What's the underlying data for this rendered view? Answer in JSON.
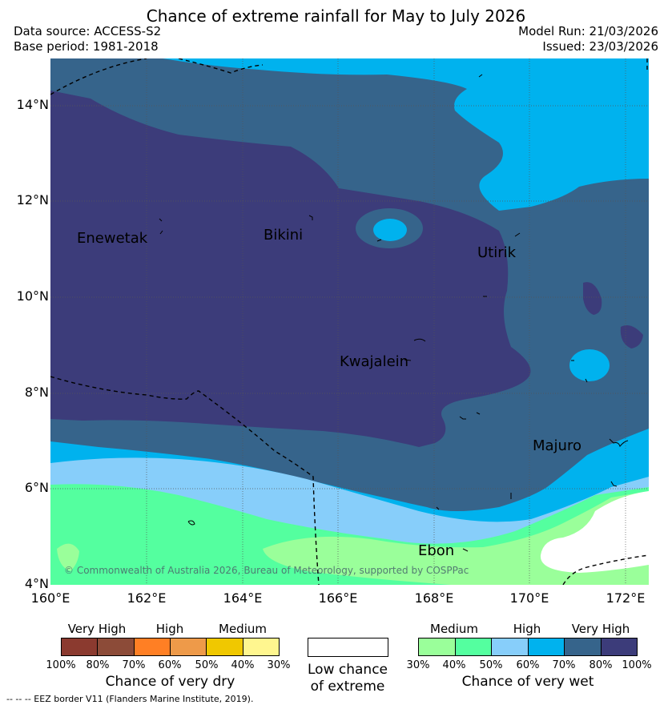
{
  "title": "Chance of extreme rainfall for May to July 2026",
  "meta": {
    "data_source": "Data source: ACCESS-S2",
    "base_period": "Base period: 1981-2018",
    "model_run": "Model Run: 21/03/2026",
    "issued": "Issued: 23/03/2026"
  },
  "axes": {
    "y_ticks": [
      "14°N",
      "12°N",
      "10°N",
      "8°N",
      "6°N",
      "4°N"
    ],
    "x_ticks": [
      "160°E",
      "162°E",
      "164°E",
      "166°E",
      "168°E",
      "170°E",
      "172°E"
    ]
  },
  "places": {
    "enewetak": "Enewetak",
    "bikini": "Bikini",
    "utirik": "Utirik",
    "kwajalein": "Kwajalein",
    "majuro": "Majuro",
    "ebon": "Ebon"
  },
  "copyright": "© Commonwealth of Australia 2026, Bureau of Meteorology, supported by COSPPac",
  "legend": {
    "dry": {
      "categories": [
        "Very High",
        "High",
        "Medium"
      ],
      "ticks": [
        "100%",
        "80%",
        "70%",
        "60%",
        "50%",
        "40%",
        "30%"
      ],
      "colors": [
        "#8b3a2f",
        "#8c4b38",
        "#ff7f24",
        "#ee9a49",
        "#f0c800",
        "#fff68f"
      ],
      "title": "Chance of very dry"
    },
    "low": {
      "title_line1": "Low chance",
      "title_line2": "of extreme",
      "color": "#ffffff"
    },
    "wet": {
      "categories": [
        "Medium",
        "High",
        "Very High"
      ],
      "ticks": [
        "30%",
        "40%",
        "50%",
        "60%",
        "70%",
        "80%",
        "100%"
      ],
      "colors": [
        "#9aff9a",
        "#54ff9f",
        "#87cefa",
        "#00b2ee",
        "#36648b",
        "#3c3c7a"
      ],
      "title": "Chance of very wet"
    }
  },
  "eez_note": "-- -- -- EEZ border V11 (Flanders Marine Institute, 2019)."
}
